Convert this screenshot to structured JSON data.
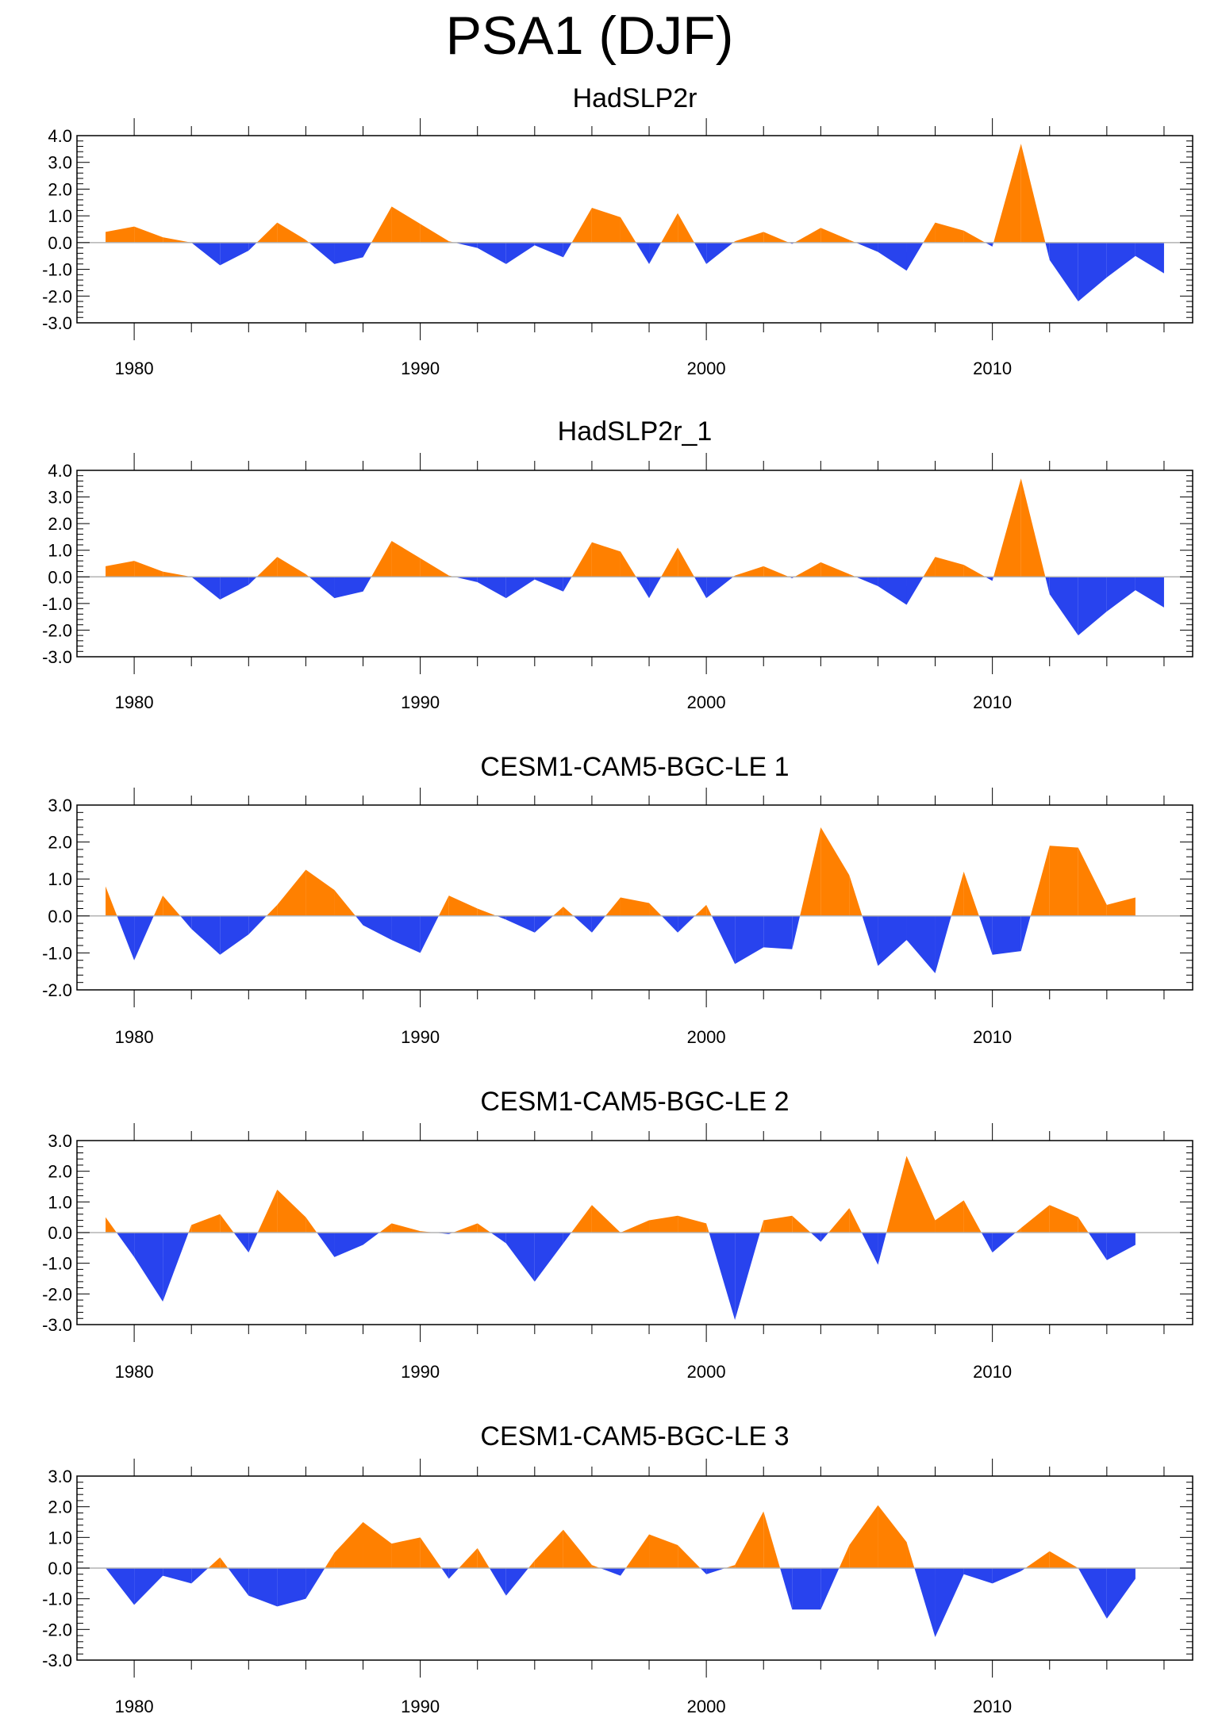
{
  "title": "PSA1 (DJF)",
  "colors": {
    "positive": "#ff8000",
    "negative": "#2843ee",
    "axis": "#000000",
    "zero_line": "#b3b3b3"
  },
  "chart_data": [
    {
      "type": "area",
      "title": "HadSLP2r",
      "xlim": [
        1978,
        2017
      ],
      "ylim": [
        -3,
        4
      ],
      "yticks": [
        4,
        3,
        2,
        1,
        0,
        -1,
        -2,
        -3
      ],
      "ytick_labels": [
        "4.0",
        "3.0",
        "2.0",
        "1.0",
        "0.0",
        "-1.0",
        "-2.0",
        "-3.0"
      ],
      "xticks": [
        1980,
        1990,
        2000,
        2010
      ],
      "xtick_labels": [
        "1980",
        "1990",
        "2000",
        "2010"
      ],
      "x": [
        1979,
        1980,
        1981,
        1982,
        1983,
        1984,
        1985,
        1986,
        1987,
        1988,
        1989,
        1990,
        1991,
        1992,
        1993,
        1994,
        1995,
        1996,
        1997,
        1998,
        1999,
        2000,
        2001,
        2002,
        2003,
        2004,
        2005,
        2006,
        2007,
        2008,
        2009,
        2010,
        2011,
        2012,
        2013,
        2014,
        2015,
        2016
      ],
      "values": [
        0.4,
        0.6,
        0.2,
        0.0,
        -0.85,
        -0.3,
        0.75,
        0.1,
        -0.8,
        -0.55,
        1.35,
        0.7,
        0.05,
        -0.2,
        -0.8,
        -0.1,
        -0.55,
        1.3,
        0.95,
        -0.8,
        1.1,
        -0.8,
        0.05,
        0.4,
        -0.05,
        0.55,
        0.1,
        -0.35,
        -1.05,
        0.75,
        0.45,
        -0.15,
        3.7,
        -0.65,
        -2.2,
        -1.3,
        -0.5,
        -1.15
      ]
    },
    {
      "type": "area",
      "title": "HadSLP2r_1",
      "xlim": [
        1978,
        2017
      ],
      "ylim": [
        -3,
        4
      ],
      "yticks": [
        4,
        3,
        2,
        1,
        0,
        -1,
        -2,
        -3
      ],
      "ytick_labels": [
        "4.0",
        "3.0",
        "2.0",
        "1.0",
        "0.0",
        "-1.0",
        "-2.0",
        "-3.0"
      ],
      "xticks": [
        1980,
        1990,
        2000,
        2010
      ],
      "xtick_labels": [
        "1980",
        "1990",
        "2000",
        "2010"
      ],
      "x": [
        1979,
        1980,
        1981,
        1982,
        1983,
        1984,
        1985,
        1986,
        1987,
        1988,
        1989,
        1990,
        1991,
        1992,
        1993,
        1994,
        1995,
        1996,
        1997,
        1998,
        1999,
        2000,
        2001,
        2002,
        2003,
        2004,
        2005,
        2006,
        2007,
        2008,
        2009,
        2010,
        2011,
        2012,
        2013,
        2014,
        2015,
        2016
      ],
      "values": [
        0.4,
        0.6,
        0.2,
        0.0,
        -0.85,
        -0.3,
        0.75,
        0.1,
        -0.8,
        -0.55,
        1.35,
        0.7,
        0.05,
        -0.2,
        -0.8,
        -0.1,
        -0.55,
        1.3,
        0.95,
        -0.8,
        1.1,
        -0.8,
        0.05,
        0.4,
        -0.05,
        0.55,
        0.1,
        -0.35,
        -1.05,
        0.75,
        0.45,
        -0.15,
        3.7,
        -0.65,
        -2.2,
        -1.3,
        -0.5,
        -1.15
      ]
    },
    {
      "type": "area",
      "title": "CESM1-CAM5-BGC-LE 1",
      "xlim": [
        1978,
        2017
      ],
      "ylim": [
        -2,
        3
      ],
      "yticks": [
        3,
        2,
        1,
        0,
        -1,
        -2
      ],
      "ytick_labels": [
        "3.0",
        "2.0",
        "1.0",
        "0.0",
        "-1.0",
        "-2.0"
      ],
      "xticks": [
        1980,
        1990,
        2000,
        2010
      ],
      "xtick_labels": [
        "1980",
        "1990",
        "2000",
        "2010"
      ],
      "x": [
        1979,
        1980,
        1981,
        1982,
        1983,
        1984,
        1985,
        1986,
        1987,
        1988,
        1989,
        1990,
        1991,
        1992,
        1993,
        1994,
        1995,
        1996,
        1997,
        1998,
        1999,
        2000,
        2001,
        2002,
        2003,
        2004,
        2005,
        2006,
        2007,
        2008,
        2009,
        2010,
        2011,
        2012,
        2013,
        2014,
        2015
      ],
      "values": [
        0.8,
        -1.2,
        0.55,
        -0.35,
        -1.05,
        -0.5,
        0.3,
        1.25,
        0.7,
        -0.25,
        -0.65,
        -1.0,
        0.55,
        0.2,
        -0.1,
        -0.45,
        0.25,
        -0.45,
        0.5,
        0.35,
        -0.45,
        0.3,
        -1.3,
        -0.85,
        -0.9,
        2.4,
        1.1,
        -1.35,
        -0.65,
        -1.55,
        1.2,
        -1.05,
        -0.95,
        1.9,
        1.85,
        0.3,
        0.5
      ]
    },
    {
      "type": "area",
      "title": "CESM1-CAM5-BGC-LE 2",
      "xlim": [
        1978,
        2017
      ],
      "ylim": [
        -3,
        3
      ],
      "yticks": [
        3,
        2,
        1,
        0,
        -1,
        -2,
        -3
      ],
      "ytick_labels": [
        "3.0",
        "2.0",
        "1.0",
        "0.0",
        "-1.0",
        "-2.0",
        "-3.0"
      ],
      "xticks": [
        1980,
        1990,
        2000,
        2010
      ],
      "xtick_labels": [
        "1980",
        "1990",
        "2000",
        "2010"
      ],
      "x": [
        1979,
        1980,
        1981,
        1982,
        1983,
        1984,
        1985,
        1986,
        1987,
        1988,
        1989,
        1990,
        1991,
        1992,
        1993,
        1994,
        1995,
        1996,
        1997,
        1998,
        1999,
        2000,
        2001,
        2002,
        2003,
        2004,
        2005,
        2006,
        2007,
        2008,
        2009,
        2010,
        2011,
        2012,
        2013,
        2014,
        2015
      ],
      "values": [
        0.5,
        -0.8,
        -2.25,
        0.25,
        0.6,
        -0.65,
        1.4,
        0.5,
        -0.8,
        -0.4,
        0.3,
        0.05,
        -0.05,
        0.3,
        -0.35,
        -1.6,
        -0.35,
        0.9,
        0.0,
        0.4,
        0.55,
        0.3,
        -2.85,
        0.4,
        0.55,
        -0.3,
        0.8,
        -1.05,
        2.5,
        0.4,
        1.05,
        -0.65,
        0.15,
        0.9,
        0.5,
        -0.9,
        -0.4
      ]
    },
    {
      "type": "area",
      "title": "CESM1-CAM5-BGC-LE 3",
      "xlim": [
        1978,
        2017
      ],
      "ylim": [
        -3,
        3
      ],
      "yticks": [
        3,
        2,
        1,
        0,
        -1,
        -2,
        -3
      ],
      "ytick_labels": [
        "3.0",
        "2.0",
        "1.0",
        "0.0",
        "-1.0",
        "-2.0",
        "-3.0"
      ],
      "xticks": [
        1980,
        1990,
        2000,
        2010
      ],
      "xtick_labels": [
        "1980",
        "1990",
        "2000",
        "2010"
      ],
      "x": [
        1979,
        1980,
        1981,
        1982,
        1983,
        1984,
        1985,
        1986,
        1987,
        1988,
        1989,
        1990,
        1991,
        1992,
        1993,
        1994,
        1995,
        1996,
        1997,
        1998,
        1999,
        2000,
        2001,
        2002,
        2003,
        2004,
        2005,
        2006,
        2007,
        2008,
        2009,
        2010,
        2011,
        2012,
        2013,
        2014,
        2015
      ],
      "values": [
        0.0,
        -1.2,
        -0.25,
        -0.5,
        0.35,
        -0.9,
        -1.25,
        -1.0,
        0.5,
        1.5,
        0.8,
        1.0,
        -0.35,
        0.65,
        -0.9,
        0.25,
        1.25,
        0.1,
        -0.25,
        1.1,
        0.75,
        -0.2,
        0.1,
        1.85,
        -1.35,
        -1.35,
        0.75,
        2.05,
        0.85,
        -2.25,
        -0.2,
        -0.5,
        -0.1,
        0.55,
        0.0,
        -1.65,
        -0.35
      ]
    }
  ]
}
